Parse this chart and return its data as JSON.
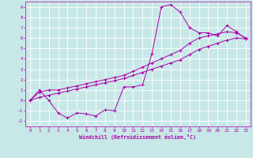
{
  "background_color": "#c8e8e8",
  "grid_color": "#ffffff",
  "line_color": "#aa00aa",
  "xlabel": "Windchill (Refroidissement éolien,°C)",
  "xlim": [
    -0.5,
    23.5
  ],
  "ylim": [
    -2.5,
    9.5
  ],
  "xticks": [
    0,
    1,
    2,
    3,
    4,
    5,
    6,
    7,
    8,
    9,
    10,
    11,
    12,
    13,
    14,
    15,
    16,
    17,
    18,
    19,
    20,
    21,
    22,
    23
  ],
  "yticks": [
    -2,
    -1,
    0,
    1,
    2,
    3,
    4,
    5,
    6,
    7,
    8,
    9
  ],
  "curve1_x": [
    0,
    1,
    2,
    3,
    4,
    5,
    6,
    7,
    8,
    9,
    10,
    11,
    12,
    13,
    14,
    15,
    16,
    17,
    18,
    19,
    20,
    21,
    22,
    23
  ],
  "curve1_y": [
    0.0,
    1.0,
    0.0,
    -1.2,
    -1.7,
    -1.2,
    -1.3,
    -1.5,
    -0.9,
    -1.0,
    1.3,
    1.3,
    1.5,
    4.5,
    9.0,
    9.2,
    8.5,
    7.0,
    6.5,
    6.5,
    6.2,
    7.2,
    6.6,
    5.9
  ],
  "curve2_x": [
    0,
    1,
    2,
    3,
    4,
    5,
    6,
    7,
    8,
    9,
    10,
    11,
    12,
    13,
    14,
    15,
    16,
    17,
    18,
    19,
    20,
    21,
    22,
    23
  ],
  "curve2_y": [
    0.0,
    0.8,
    1.0,
    1.0,
    1.2,
    1.4,
    1.6,
    1.8,
    2.0,
    2.2,
    2.4,
    2.8,
    3.2,
    3.6,
    4.0,
    4.4,
    4.8,
    5.5,
    6.0,
    6.2,
    6.4,
    6.6,
    6.5,
    6.0
  ],
  "curve3_x": [
    0,
    1,
    2,
    3,
    4,
    5,
    6,
    7,
    8,
    9,
    10,
    11,
    12,
    13,
    14,
    15,
    16,
    17,
    18,
    19,
    20,
    21,
    22,
    23
  ],
  "curve3_y": [
    0.0,
    0.3,
    0.5,
    0.7,
    0.9,
    1.1,
    1.3,
    1.5,
    1.7,
    1.9,
    2.1,
    2.4,
    2.7,
    3.0,
    3.3,
    3.6,
    3.9,
    4.4,
    4.9,
    5.2,
    5.5,
    5.8,
    6.0,
    5.9
  ]
}
